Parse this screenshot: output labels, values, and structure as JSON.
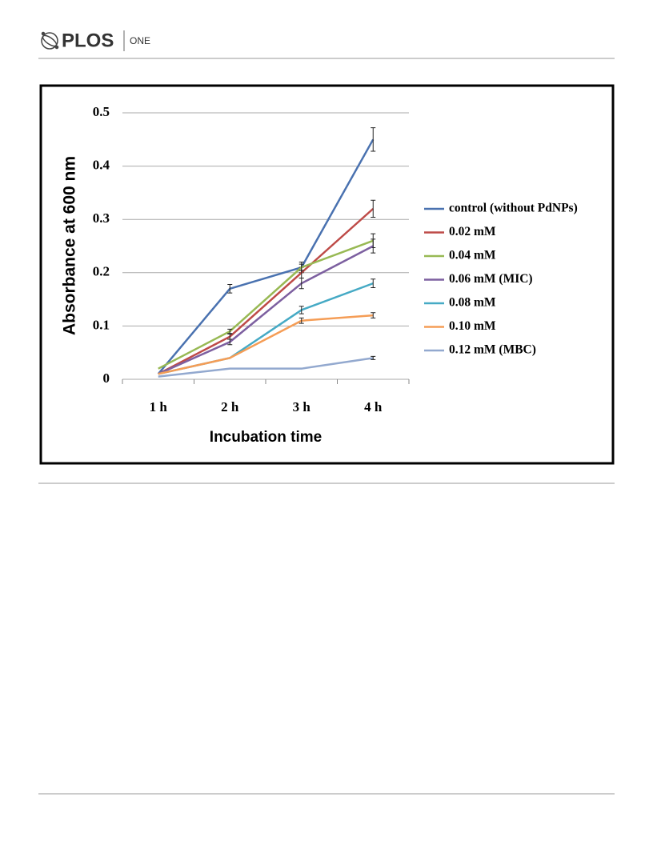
{
  "header": {
    "brand": "PLOS",
    "journal": "ONE"
  },
  "chart_data": {
    "type": "line",
    "ylabel": "Absorbance at 600 nm",
    "xlabel": "Incubation time",
    "categories": [
      "1 h",
      "2 h",
      "3 h",
      "4 h"
    ],
    "ylim": [
      0,
      0.5
    ],
    "yticks": [
      0,
      0.1,
      0.2,
      0.3,
      0.4,
      0.5
    ],
    "grid": true,
    "legend": "right",
    "series": [
      {
        "name": "control (without PdNPs)",
        "color": "#4a72b0",
        "values": [
          0.01,
          0.17,
          0.21,
          0.45
        ],
        "errors": [
          0,
          0.008,
          0.01,
          0.022
        ]
      },
      {
        "name": "0.02 mM",
        "color": "#be4b48",
        "values": [
          0.01,
          0.08,
          0.2,
          0.32
        ],
        "errors": [
          0,
          0.005,
          0.01,
          0.016
        ]
      },
      {
        "name": "0.04 mM",
        "color": "#98b954",
        "values": [
          0.02,
          0.09,
          0.21,
          0.26
        ],
        "errors": [
          0,
          0.004,
          0.006,
          0.013
        ]
      },
      {
        "name": "0.06 mM (MIC)",
        "color": "#7d60a0",
        "values": [
          0.01,
          0.07,
          0.18,
          0.25
        ],
        "errors": [
          0,
          0.005,
          0.01,
          0.013
        ]
      },
      {
        "name": "0.08 mM",
        "color": "#46aac5",
        "values": [
          0.01,
          0.04,
          0.13,
          0.18
        ],
        "errors": [
          0,
          0,
          0.007,
          0.008
        ]
      },
      {
        "name": "0.10 mM",
        "color": "#f59d56",
        "values": [
          0.01,
          0.04,
          0.11,
          0.12
        ],
        "errors": [
          0,
          0,
          0.005,
          0.005
        ]
      },
      {
        "name": "0.12 mM (MBC)",
        "color": "#93a9cf",
        "values": [
          0.005,
          0.02,
          0.02,
          0.04
        ],
        "errors": [
          0,
          0,
          0,
          0.003
        ]
      }
    ]
  }
}
